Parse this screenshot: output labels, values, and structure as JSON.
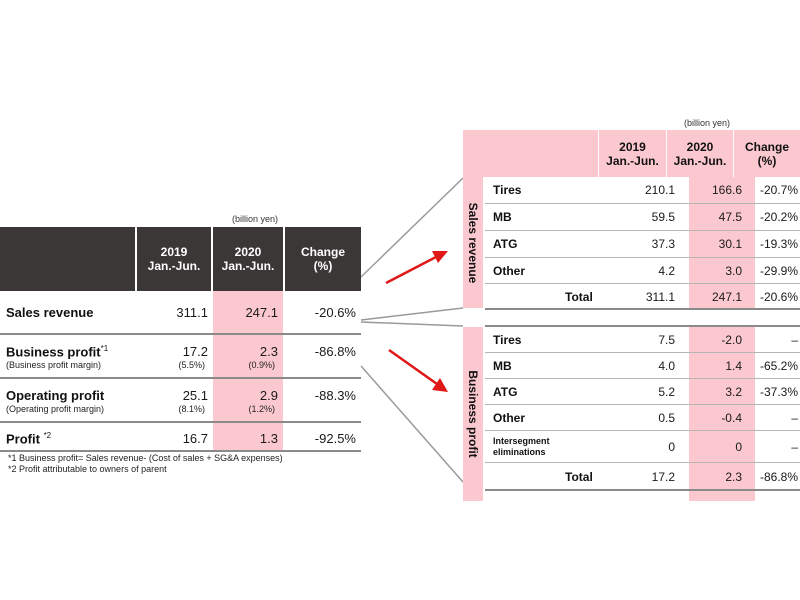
{
  "left_table": {
    "unit": "(billion yen)",
    "headers": {
      "y2019": [
        "2019",
        "Jan.-Jun."
      ],
      "y2020": [
        "2020",
        "Jan.-Jun."
      ],
      "change": [
        "Change",
        "(%)"
      ]
    },
    "rows": [
      {
        "label": "Sales revenue",
        "sup": "",
        "sublabel": "",
        "v2019": "311.1",
        "v2019_sub": "",
        "v2020": "247.1",
        "v2020_sub": "",
        "change": "-20.6%"
      },
      {
        "label": "Business profit",
        "sup": "*1",
        "sublabel": "(Business profit margin)",
        "v2019": "17.2",
        "v2019_sub": "(5.5%)",
        "v2020": "2.3",
        "v2020_sub": "(0.9%)",
        "change": "-86.8%"
      },
      {
        "label": "Operating profit",
        "sup": "",
        "sublabel": "(Operating profit margin)",
        "v2019": "25.1",
        "v2019_sub": "(8.1%)",
        "v2020": "2.9",
        "v2020_sub": "(1.2%)",
        "change": "-88.3%"
      },
      {
        "label": "Profit ",
        "sup": "*2",
        "sublabel": "",
        "v2019": "16.7",
        "v2019_sub": "",
        "v2020": "1.3",
        "v2020_sub": "",
        "change": "-92.5%"
      }
    ],
    "footnotes": [
      "*1 Business profit= Sales revenue- (Cost of sales + SG&A expenses)",
      "*2 Profit attributable to owners of parent"
    ]
  },
  "right_table": {
    "unit": "(billion yen)",
    "headers": {
      "y2019": [
        "2019",
        "Jan.-Jun."
      ],
      "y2020": [
        "2020",
        "Jan.-Jun."
      ],
      "change": [
        "Change",
        "(%)"
      ]
    },
    "sales_revenue": {
      "group_label": "Sales revenue",
      "rows": [
        {
          "label": "Tires",
          "v2019": "210.1",
          "v2020": "166.6",
          "change": "-20.7%"
        },
        {
          "label": "MB",
          "v2019": "59.5",
          "v2020": "47.5",
          "change": "-20.2%"
        },
        {
          "label": "ATG",
          "v2019": "37.3",
          "v2020": "30.1",
          "change": "-19.3%"
        },
        {
          "label": "Other",
          "v2019": "4.2",
          "v2020": "3.0",
          "change": "-29.9%"
        }
      ],
      "total": {
        "label": "Total",
        "v2019": "311.1",
        "v2020": "247.1",
        "change": "-20.6%"
      }
    },
    "business_profit": {
      "group_label": "Business profit",
      "rows": [
        {
          "label": "Tires",
          "v2019": "7.5",
          "v2020": "-2.0",
          "change": "–"
        },
        {
          "label": "MB",
          "v2019": "4.0",
          "v2020": "1.4",
          "change": "-65.2%"
        },
        {
          "label": "ATG",
          "v2019": "5.2",
          "v2020": "3.2",
          "change": "-37.3%"
        },
        {
          "label": "Other",
          "v2019": "0.5",
          "v2020": "-0.4",
          "change": "–"
        }
      ],
      "elim": {
        "label_line1": "Intersegment",
        "label_line2": "eliminations",
        "v2019": "0",
        "v2020": "0",
        "change": "–"
      },
      "total": {
        "label": "Total",
        "v2019": "17.2",
        "v2020": "2.3",
        "change": "-86.8%"
      }
    }
  },
  "colors": {
    "header_dark": "#3b3737",
    "pink": "#fbc8cf",
    "arrow": "#e01818"
  },
  "icons": [
    "arrow-right-up-icon",
    "arrow-right-down-icon"
  ]
}
